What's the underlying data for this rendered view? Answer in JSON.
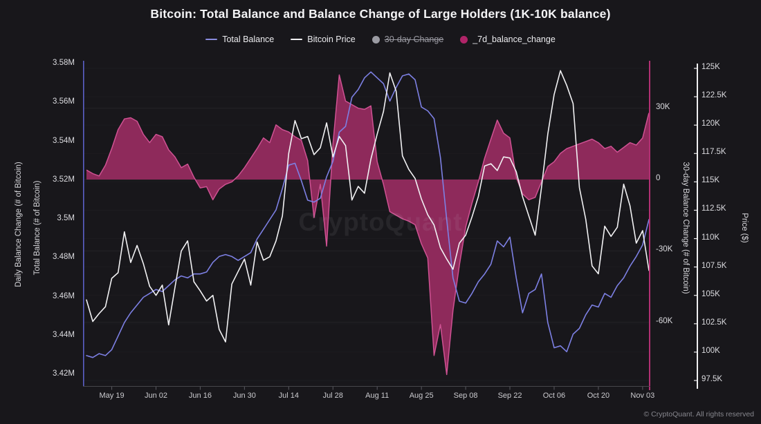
{
  "title": "Bitcoin: Total Balance and Balance Change of Large Holders (1K-10K balance)",
  "watermark": "CryptoQuant",
  "footer": "© CryptoQuant. All rights reserved",
  "colors": {
    "background": "#18171b",
    "total_balance_line": "#7d80e4",
    "bitcoin_price_line": "#f2f2f4",
    "balance_change_area_fill": "#8e2a5b",
    "balance_change_area_edge": "#cf5293",
    "disabled_legend_gray": "#9b9ba3"
  },
  "legend": {
    "items": [
      {
        "label": "Total Balance",
        "swatch": "line",
        "color": "#8a8ce0",
        "disabled": false
      },
      {
        "label": "Bitcoin Price",
        "swatch": "line",
        "color": "#f2f2f4",
        "disabled": false
      },
      {
        "label": "30-day Change",
        "swatch": "dot",
        "color": "#9b9ba3",
        "disabled": true
      },
      {
        "label": "_7d_balance_change",
        "swatch": "dot",
        "color": "#b02468",
        "disabled": false
      }
    ]
  },
  "chart_data": {
    "type": "line",
    "note": "points sampled every 2 days, May 10 to Nov 04",
    "x_axis": {
      "tick_labels": [
        "May 19",
        "Jun 02",
        "Jun 16",
        "Jun 30",
        "Jul 14",
        "Jul 28",
        "Aug 11",
        "Aug 25",
        "Sep 08",
        "Sep 22",
        "Oct 06",
        "Oct 20",
        "Nov 03"
      ],
      "tick_indices": [
        4,
        11,
        18,
        25,
        32,
        39,
        46,
        53,
        60,
        67,
        74,
        81,
        88
      ]
    },
    "axes": {
      "balance": {
        "title_outer": "Daily Balance Change (# of Bitcoin)",
        "title_inner": "Total Balance (# of Bitcoin)",
        "tick_labels": [
          "3.58M",
          "3.56M",
          "3.54M",
          "3.52M",
          "3.5M",
          "3.48M",
          "3.46M",
          "3.44M",
          "3.42M"
        ],
        "tick_values": [
          3.58,
          3.56,
          3.54,
          3.52,
          3.5,
          3.48,
          3.46,
          3.44,
          3.42
        ],
        "range": [
          3.42,
          3.58
        ],
        "line_color": "#5c60c8"
      },
      "change": {
        "title": "30-day Balance Change (# of Bitcoin)",
        "tick_labels": [
          "30K",
          "0",
          "-30K",
          "-60K"
        ],
        "tick_values": [
          30,
          0,
          -30,
          -60
        ],
        "line_color": "#b13072"
      },
      "price": {
        "title": "Price ($)",
        "tick_labels": [
          "125K",
          "122.5K",
          "120K",
          "117.5K",
          "115K",
          "112.5K",
          "110K",
          "107.5K",
          "105K",
          "102.5K",
          "100K",
          "97.5K"
        ],
        "tick_values": [
          125,
          122.5,
          120,
          117.5,
          115,
          112.5,
          110,
          107.5,
          105,
          102.5,
          100,
          97.5
        ],
        "range": [
          97.5,
          125
        ],
        "line_color": "#f0f0f2"
      }
    },
    "series": [
      {
        "name": "Total Balance",
        "axis": "balance",
        "type": "line",
        "color": "#7d80e4",
        "values": [
          3.43,
          3.429,
          3.431,
          3.43,
          3.433,
          3.44,
          3.447,
          3.452,
          3.456,
          3.46,
          3.462,
          3.464,
          3.463,
          3.466,
          3.469,
          3.471,
          3.47,
          3.472,
          3.472,
          3.473,
          3.478,
          3.481,
          3.482,
          3.481,
          3.479,
          3.481,
          3.483,
          3.49,
          3.495,
          3.5,
          3.505,
          3.516,
          3.528,
          3.529,
          3.52,
          3.51,
          3.509,
          3.511,
          3.522,
          3.53,
          3.545,
          3.548,
          3.563,
          3.567,
          3.573,
          3.576,
          3.573,
          3.57,
          3.561,
          3.568,
          3.574,
          3.575,
          3.572,
          3.558,
          3.556,
          3.552,
          3.532,
          3.5,
          3.47,
          3.458,
          3.457,
          3.462,
          3.468,
          3.472,
          3.477,
          3.489,
          3.486,
          3.491,
          3.47,
          3.452,
          3.462,
          3.464,
          3.472,
          3.447,
          3.434,
          3.435,
          3.432,
          3.441,
          3.444,
          3.451,
          3.456,
          3.455,
          3.462,
          3.46,
          3.466,
          3.47,
          3.476,
          3.481,
          3.487,
          3.5
        ]
      },
      {
        "name": "Bitcoin Price",
        "axis": "price",
        "type": "line",
        "color": "#f2f2f4",
        "values": [
          104.6,
          102.7,
          103.4,
          104.0,
          106.5,
          107.0,
          110.6,
          107.9,
          109.4,
          107.8,
          105.8,
          105.0,
          105.9,
          102.4,
          105.7,
          108.9,
          109.8,
          106.2,
          105.4,
          104.5,
          105.0,
          102.0,
          100.9,
          106.0,
          107.1,
          108.2,
          105.9,
          109.7,
          108.1,
          108.4,
          109.8,
          112.0,
          117.5,
          120.4,
          118.8,
          119.0,
          117.4,
          118.0,
          120.2,
          117.2,
          119.0,
          118.2,
          113.4,
          114.6,
          114.0,
          117.0,
          119.2,
          121.2,
          124.6,
          123.0,
          117.3,
          116.1,
          115.3,
          113.5,
          112.1,
          111.2,
          109.2,
          108.2,
          107.3,
          109.6,
          110.3,
          111.9,
          113.7,
          116.4,
          116.6,
          116.0,
          117.2,
          117.1,
          115.9,
          113.7,
          112.0,
          110.3,
          114.5,
          119.2,
          122.7,
          124.8,
          123.5,
          121.9,
          114.5,
          111.7,
          107.6,
          106.9,
          111.1,
          110.2,
          111.0,
          114.8,
          112.9,
          109.6,
          110.7,
          107.2
        ]
      },
      {
        "name": "_7d_balance_change",
        "axis": "change",
        "type": "area",
        "color": "#cf5293",
        "fill_color": "#8e2a5b",
        "values": [
          4.0,
          2.5,
          1.5,
          6.0,
          13.0,
          21.0,
          25.5,
          26.0,
          24.5,
          19.0,
          15.5,
          19.0,
          18.0,
          12.5,
          9.5,
          5.0,
          6.5,
          1.0,
          -3.5,
          -3.0,
          -8.5,
          -4.0,
          -2.0,
          -1.0,
          1.5,
          5.0,
          9.0,
          13.0,
          17.5,
          15.5,
          23.0,
          21.0,
          20.0,
          18.0,
          16.5,
          8.0,
          -16.0,
          -2.0,
          -28.0,
          15.0,
          44.0,
          33.0,
          31.5,
          30.0,
          29.5,
          31.0,
          7.5,
          -2.0,
          -13.5,
          -15.0,
          -16.5,
          -17.5,
          -19.0,
          -27.0,
          -33.0,
          -74.0,
          -61.0,
          -82.0,
          -55.0,
          -36.0,
          -20.0,
          -10.0,
          -1.0,
          9.0,
          17.0,
          25.0,
          19.5,
          17.5,
          1.0,
          -6.0,
          -8.5,
          -7.5,
          -1.0,
          5.5,
          7.5,
          11.0,
          13.0,
          14.0,
          15.0,
          16.0,
          17.0,
          15.5,
          13.0,
          14.0,
          11.5,
          13.5,
          15.5,
          14.5,
          17.5,
          28.0
        ]
      }
    ]
  }
}
